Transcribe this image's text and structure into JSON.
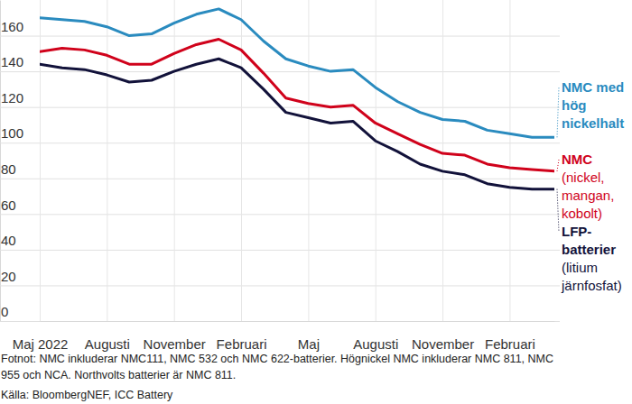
{
  "chart_data": {
    "type": "line",
    "categories": [
      "Maj 2022",
      null,
      null,
      "Augusti",
      null,
      null,
      "November",
      null,
      null,
      "Februari",
      null,
      null,
      "Maj",
      null,
      null,
      "Augusti",
      null,
      null,
      "November",
      null,
      null,
      "Februari",
      null,
      null
    ],
    "series": [
      {
        "name": "NMC med hög nickelhalt",
        "color": "#2a8bbf",
        "values": [
          170,
          169,
          168,
          165,
          160,
          161,
          167,
          172,
          175,
          169,
          157,
          147,
          143,
          140,
          141,
          131,
          123,
          117,
          113,
          112,
          107,
          105,
          103,
          103
        ]
      },
      {
        "name": "NMC",
        "description": "(nickel, mangan, kobolt)",
        "color": "#d0021b",
        "values": [
          151,
          153,
          152,
          149,
          144,
          144,
          150,
          155,
          158,
          152,
          139,
          125,
          122,
          120,
          121,
          111,
          105,
          99,
          94,
          93,
          88,
          86,
          85,
          84
        ]
      },
      {
        "name": "LFP-batterier",
        "description": "(litium järnfosfat)",
        "color": "#12123a",
        "values": [
          144,
          142,
          141,
          138,
          134,
          135,
          140,
          144,
          147,
          142,
          130,
          117,
          114,
          111,
          112,
          101,
          95,
          88,
          84,
          82,
          77,
          75,
          74,
          74
        ]
      }
    ],
    "ylim": [
      0,
      180
    ],
    "yticks": [
      0,
      20,
      40,
      60,
      80,
      100,
      120,
      140,
      160
    ],
    "grid": true,
    "footnote": [
      "Fotnot: NMC inkluderar NMC111, NMC 532 och NMC 622-batterier. Högnickel NMC inkluderar NMC 811, NMC",
      "955 och NCA. Northvolts batterier är NMC 811."
    ],
    "source": "Källa: BloombergNEF, ICC Battery"
  }
}
